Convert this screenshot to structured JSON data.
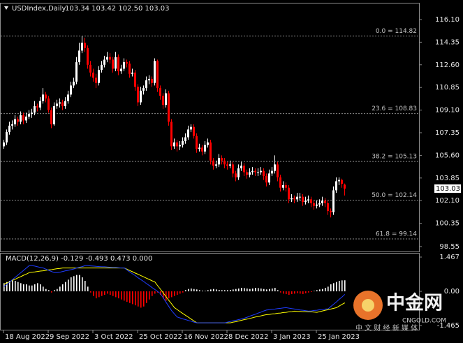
{
  "chart_data": [
    {
      "type": "candlestick",
      "title": "USDIndex,Daily",
      "quote": "103.34 103.42 102.50 103.03",
      "ylim": [
        98.17,
        117.34
      ],
      "yticks": [
        {
          "value": 116.1,
          "label": "116.10"
        },
        {
          "value": 114.35,
          "label": "114.35"
        },
        {
          "value": 112.6,
          "label": "112.60"
        },
        {
          "value": 110.85,
          "label": "110.85"
        },
        {
          "value": 109.1,
          "label": "109.10"
        },
        {
          "value": 107.35,
          "label": "107.35"
        },
        {
          "value": 105.6,
          "label": "105.60"
        },
        {
          "value": 103.85,
          "label": "103.85"
        },
        {
          "value": 102.1,
          "label": "102.10"
        },
        {
          "value": 100.35,
          "label": "100.35"
        },
        {
          "value": 98.55,
          "label": "98.55"
        }
      ],
      "xlim": [
        -1.25,
        148.75
      ],
      "xticks": [
        {
          "value": 0,
          "label": "18 Aug 2022"
        },
        {
          "value": 16,
          "label": "9 Sep 2022"
        },
        {
          "value": 32,
          "label": "3 Oct 2022"
        },
        {
          "value": 48,
          "label": "25 Oct 2022"
        },
        {
          "value": 64,
          "label": "16 Nov 2022"
        },
        {
          "value": 80,
          "label": "8 Dec 2022"
        },
        {
          "value": 96,
          "label": "3 Jan 2023"
        },
        {
          "value": 112,
          "label": "25 Jan 2023"
        }
      ],
      "fib_levels": [
        {
          "value": 114.82,
          "label": "0.0 = 114.82"
        },
        {
          "value": 108.83,
          "label": "23.6 = 108.83"
        },
        {
          "value": 105.13,
          "label": "38.2 = 105.13"
        },
        {
          "value": 102.14,
          "label": "50.0 = 102.14"
        },
        {
          "value": 99.14,
          "label": "61.8 = 99.14"
        }
      ],
      "last_price": {
        "value": 103.03,
        "label": "103.03"
      },
      "up_color": "#ffffff",
      "down_color": "#ff0000",
      "candles": [
        [
          106.3,
          106.8,
          106.1,
          106.6
        ],
        [
          106.6,
          107.6,
          106.4,
          107.4
        ],
        [
          107.4,
          108.2,
          107.2,
          107.9
        ],
        [
          107.9,
          108.3,
          107.6,
          108.0
        ],
        [
          108.0,
          108.7,
          107.8,
          108.4
        ],
        [
          108.4,
          108.6,
          107.9,
          108.2
        ],
        [
          108.2,
          109.0,
          108.0,
          108.7
        ],
        [
          108.7,
          108.9,
          108.0,
          108.3
        ],
        [
          108.3,
          108.9,
          108.1,
          108.6
        ],
        [
          108.6,
          109.1,
          108.4,
          108.8
        ],
        [
          108.8,
          109.2,
          108.5,
          108.9
        ],
        [
          108.9,
          109.8,
          108.7,
          109.4
        ],
        [
          109.4,
          109.6,
          109.0,
          109.3
        ],
        [
          109.3,
          110.1,
          109.1,
          109.8
        ],
        [
          109.8,
          110.8,
          109.6,
          110.3
        ],
        [
          110.3,
          110.5,
          109.7,
          110.0
        ],
        [
          110.0,
          110.2,
          108.9,
          109.1
        ],
        [
          109.1,
          109.3,
          107.7,
          108.0
        ],
        [
          108.0,
          109.7,
          107.9,
          109.4
        ],
        [
          109.4,
          109.9,
          109.2,
          109.6
        ],
        [
          109.6,
          110.0,
          109.3,
          109.7
        ],
        [
          109.7,
          109.9,
          109.1,
          109.4
        ],
        [
          109.4,
          110.1,
          109.2,
          109.8
        ],
        [
          109.8,
          110.6,
          109.6,
          110.3
        ],
        [
          110.3,
          111.3,
          110.1,
          111.0
        ],
        [
          111.0,
          111.6,
          110.8,
          111.3
        ],
        [
          111.3,
          113.2,
          111.1,
          112.8
        ],
        [
          112.8,
          114.3,
          112.6,
          113.7
        ],
        [
          113.7,
          114.8,
          113.5,
          114.3
        ],
        [
          114.3,
          114.7,
          113.6,
          113.9
        ],
        [
          113.9,
          114.1,
          112.3,
          112.6
        ],
        [
          112.6,
          112.9,
          111.7,
          112.0
        ],
        [
          112.0,
          112.3,
          111.3,
          111.6
        ],
        [
          111.6,
          111.9,
          110.8,
          111.2
        ],
        [
          111.2,
          112.5,
          111.0,
          112.2
        ],
        [
          112.2,
          112.9,
          112.0,
          112.6
        ],
        [
          112.6,
          113.3,
          112.4,
          113.0
        ],
        [
          113.0,
          113.6,
          112.8,
          113.2
        ],
        [
          113.2,
          113.5,
          112.7,
          113.0
        ],
        [
          113.0,
          113.2,
          112.0,
          112.3
        ],
        [
          112.3,
          113.6,
          112.1,
          113.2
        ],
        [
          113.2,
          113.4,
          111.8,
          112.1
        ],
        [
          112.1,
          112.6,
          111.9,
          112.3
        ],
        [
          112.3,
          113.1,
          112.1,
          112.8
        ],
        [
          112.8,
          113.0,
          112.4,
          112.7
        ],
        [
          112.7,
          112.9,
          111.6,
          111.9
        ],
        [
          111.9,
          112.3,
          111.7,
          112.0
        ],
        [
          112.0,
          112.2,
          110.6,
          110.9
        ],
        [
          110.9,
          111.1,
          109.4,
          109.7
        ],
        [
          109.7,
          110.9,
          109.5,
          110.6
        ],
        [
          110.6,
          111.0,
          110.3,
          110.8
        ],
        [
          110.8,
          111.7,
          110.6,
          111.4
        ],
        [
          111.4,
          111.8,
          111.1,
          111.5
        ],
        [
          111.5,
          111.7,
          110.9,
          111.2
        ],
        [
          111.2,
          113.1,
          111.0,
          112.9
        ],
        [
          112.9,
          113.0,
          110.5,
          110.8
        ],
        [
          110.8,
          111.0,
          109.9,
          110.2
        ],
        [
          110.2,
          110.4,
          109.2,
          109.5
        ],
        [
          109.5,
          110.7,
          109.3,
          110.4
        ],
        [
          110.4,
          110.6,
          107.9,
          108.2
        ],
        [
          108.2,
          108.4,
          106.0,
          106.3
        ],
        [
          106.3,
          106.9,
          106.1,
          106.6
        ],
        [
          106.6,
          106.8,
          105.9,
          106.3
        ],
        [
          106.3,
          106.7,
          106.0,
          106.4
        ],
        [
          106.4,
          107.0,
          106.2,
          106.7
        ],
        [
          106.7,
          107.3,
          106.5,
          107.0
        ],
        [
          107.0,
          107.9,
          106.8,
          107.6
        ],
        [
          107.6,
          108.0,
          107.4,
          107.8
        ],
        [
          107.8,
          108.0,
          106.9,
          107.1
        ],
        [
          107.1,
          107.3,
          105.8,
          106.1
        ],
        [
          106.1,
          106.5,
          105.9,
          106.2
        ],
        [
          106.2,
          106.4,
          105.6,
          105.9
        ],
        [
          105.9,
          106.7,
          105.7,
          106.4
        ],
        [
          106.4,
          106.9,
          106.2,
          106.6
        ],
        [
          106.6,
          106.8,
          104.9,
          105.2
        ],
        [
          105.2,
          105.4,
          104.5,
          104.8
        ],
        [
          104.8,
          105.2,
          104.6,
          104.9
        ],
        [
          104.9,
          105.7,
          104.7,
          105.4
        ],
        [
          105.4,
          105.6,
          104.9,
          105.2
        ],
        [
          105.2,
          105.4,
          104.6,
          104.9
        ],
        [
          104.9,
          105.1,
          104.5,
          104.8
        ],
        [
          104.8,
          105.2,
          104.6,
          104.9
        ],
        [
          104.9,
          105.1,
          103.9,
          104.2
        ],
        [
          104.2,
          104.4,
          103.6,
          103.9
        ],
        [
          103.9,
          104.9,
          103.7,
          104.6
        ],
        [
          104.6,
          105.1,
          104.4,
          104.8
        ],
        [
          104.8,
          105.0,
          104.0,
          104.3
        ],
        [
          104.3,
          104.5,
          103.8,
          104.1
        ],
        [
          104.1,
          104.6,
          103.9,
          104.3
        ],
        [
          104.3,
          104.7,
          104.1,
          104.4
        ],
        [
          104.4,
          104.6,
          104.0,
          104.3
        ],
        [
          104.3,
          104.6,
          104.0,
          104.3
        ],
        [
          104.3,
          104.7,
          104.1,
          104.4
        ],
        [
          104.4,
          104.6,
          103.7,
          104.0
        ],
        [
          104.0,
          104.2,
          103.2,
          103.5
        ],
        [
          103.5,
          104.5,
          103.3,
          104.2
        ],
        [
          104.2,
          104.7,
          104.0,
          104.4
        ],
        [
          104.4,
          105.6,
          104.2,
          104.9
        ],
        [
          104.9,
          105.1,
          103.6,
          103.9
        ],
        [
          103.9,
          104.1,
          102.8,
          103.1
        ],
        [
          103.1,
          103.6,
          102.9,
          103.3
        ],
        [
          103.3,
          103.5,
          102.8,
          103.1
        ],
        [
          103.1,
          103.3,
          101.9,
          102.2
        ],
        [
          102.2,
          102.6,
          102.0,
          102.3
        ],
        [
          102.3,
          102.5,
          101.9,
          102.2
        ],
        [
          102.2,
          102.7,
          102.0,
          102.4
        ],
        [
          102.4,
          102.7,
          102.1,
          102.4
        ],
        [
          102.4,
          102.6,
          101.7,
          102.0
        ],
        [
          102.0,
          102.4,
          101.8,
          102.1
        ],
        [
          102.1,
          102.5,
          101.9,
          102.2
        ],
        [
          102.2,
          102.4,
          101.6,
          101.9
        ],
        [
          101.9,
          102.1,
          101.4,
          101.7
        ],
        [
          101.7,
          102.1,
          101.5,
          101.8
        ],
        [
          101.8,
          102.2,
          101.6,
          101.9
        ],
        [
          101.9,
          102.4,
          101.7,
          102.1
        ],
        [
          102.1,
          102.3,
          101.6,
          101.9
        ],
        [
          101.9,
          102.1,
          101.0,
          101.3
        ],
        [
          101.3,
          101.5,
          100.8,
          101.2
        ],
        [
          101.2,
          103.2,
          101.0,
          102.9
        ],
        [
          102.9,
          103.9,
          102.7,
          103.6
        ],
        [
          103.6,
          103.9,
          103.3,
          103.7
        ],
        [
          103.7,
          103.8,
          103.1,
          103.4
        ],
        [
          103.34,
          103.42,
          102.5,
          103.03
        ]
      ]
    },
    {
      "type": "macd",
      "title": "MACD(12,26,9) -0.129 -0.493 0.473 0.000",
      "ylim": [
        -1.645,
        1.617
      ],
      "yticks": [
        1.467,
        {
          "value": 0,
          "label": "0.00"
        },
        -1.465
      ],
      "histogram": {
        "up_color": "#ffffff",
        "down_color": "#ff0000",
        "values": [
          0.35,
          0.4,
          0.45,
          0.5,
          0.45,
          0.4,
          0.35,
          0.3,
          0.3,
          0.25,
          0.25,
          0.3,
          0.35,
          0.3,
          0.2,
          0.1,
          0.05,
          -0.05,
          0.05,
          0.1,
          0.2,
          0.3,
          0.4,
          0.5,
          0.6,
          0.65,
          0.7,
          0.7,
          0.6,
          0.45,
          0.2,
          -0.05,
          -0.2,
          -0.3,
          -0.25,
          -0.2,
          -0.15,
          -0.1,
          -0.15,
          -0.2,
          -0.25,
          -0.3,
          -0.35,
          -0.4,
          -0.45,
          -0.5,
          -0.55,
          -0.6,
          -0.65,
          -0.7,
          -0.65,
          -0.5,
          -0.35,
          -0.2,
          -0.1,
          -0.05,
          -0.15,
          -0.3,
          -0.4,
          -0.3,
          -0.25,
          -0.2,
          -0.15,
          -0.1,
          -0.05,
          0.05,
          0.1,
          0.12,
          0.1,
          0.08,
          0.05,
          0.03,
          0.02,
          0.05,
          0.08,
          0.1,
          0.08,
          0.06,
          0.05,
          0.05,
          0.05,
          0.06,
          0.08,
          0.1,
          0.12,
          0.15,
          0.14,
          0.12,
          0.1,
          0.12,
          0.15,
          0.14,
          0.12,
          0.1,
          0.08,
          0.1,
          0.12,
          0.15,
          0.05,
          -0.05,
          -0.1,
          -0.12,
          -0.15,
          -0.12,
          -0.1,
          -0.08,
          -0.1,
          -0.12,
          -0.08,
          -0.05,
          -0.03,
          0.02,
          0.05,
          0.08,
          0.1,
          0.15,
          0.2,
          0.3,
          0.35,
          0.4,
          0.45,
          0.47,
          0.473
        ]
      },
      "macd_line": {
        "color": "#1e3cff",
        "values": [
          0.2,
          0.3,
          0.4,
          0.5,
          0.6,
          0.7,
          0.8,
          0.9,
          1.0,
          1.1,
          1.1,
          1.08,
          1.05,
          1.02,
          1.0,
          0.95,
          0.9,
          0.85,
          0.8,
          0.8,
          0.82,
          0.85,
          0.88,
          0.9,
          0.93,
          0.96,
          1.0,
          1.03,
          1.06,
          1.1,
          1.1,
          1.09,
          1.08,
          1.07,
          1.06,
          1.05,
          1.05,
          1.04,
          1.03,
          1.02,
          1.02,
          1.01,
          1.0,
          1.0,
          0.92,
          0.83,
          0.75,
          0.67,
          0.58,
          0.5,
          0.42,
          0.33,
          0.25,
          0.16,
          0.08,
          -0.01,
          -0.1,
          -0.28,
          -0.47,
          -0.65,
          -0.83,
          -0.97,
          -1.1,
          -1.14,
          -1.18,
          -1.21,
          -1.25,
          -1.28,
          -1.32,
          -1.35,
          -1.35,
          -1.35,
          -1.35,
          -1.35,
          -1.35,
          -1.35,
          -1.35,
          -1.35,
          -1.35,
          -1.35,
          -1.32,
          -1.29,
          -1.26,
          -1.24,
          -1.21,
          -1.18,
          -1.15,
          -1.11,
          -1.06,
          -1.02,
          -0.98,
          -0.93,
          -0.89,
          -0.84,
          -0.8,
          -0.79,
          -0.77,
          -0.76,
          -0.74,
          -0.73,
          -0.71,
          -0.7,
          -0.72,
          -0.74,
          -0.76,
          -0.78,
          -0.8,
          -0.81,
          -0.83,
          -0.85,
          -0.84,
          -0.82,
          -0.81,
          -0.79,
          -0.78,
          -0.76,
          -0.75,
          -0.65,
          -0.55,
          -0.45,
          -0.34,
          -0.24,
          -0.129
        ]
      },
      "signal_line": {
        "color": "#ffff00",
        "values": [
          0.3,
          0.36,
          0.41,
          0.47,
          0.52,
          0.58,
          0.63,
          0.69,
          0.74,
          0.8,
          0.82,
          0.83,
          0.85,
          0.87,
          0.88,
          0.9,
          0.92,
          0.93,
          0.95,
          0.97,
          0.98,
          1.0,
          1.0,
          1.0,
          1.0,
          1.0,
          1.0,
          1.0,
          1.0,
          1.0,
          1.0,
          1.0,
          1.0,
          1.0,
          1.0,
          1.0,
          1.0,
          1.0,
          1.0,
          1.0,
          1.0,
          1.0,
          1.0,
          1.0,
          0.95,
          0.89,
          0.84,
          0.78,
          0.73,
          0.67,
          0.62,
          0.56,
          0.51,
          0.45,
          0.4,
          0.24,
          0.09,
          -0.07,
          -0.23,
          -0.39,
          -0.54,
          -0.7,
          -0.78,
          -0.87,
          -0.95,
          -1.03,
          -1.11,
          -1.19,
          -1.27,
          -1.35,
          -1.35,
          -1.35,
          -1.35,
          -1.35,
          -1.35,
          -1.35,
          -1.35,
          -1.35,
          -1.35,
          -1.35,
          -1.35,
          -1.35,
          -1.32,
          -1.3,
          -1.27,
          -1.24,
          -1.21,
          -1.19,
          -1.16,
          -1.13,
          -1.1,
          -1.08,
          -1.05,
          -1.02,
          -1.0,
          -0.99,
          -0.97,
          -0.96,
          -0.94,
          -0.93,
          -0.91,
          -0.9,
          -0.88,
          -0.87,
          -0.85,
          -0.86,
          -0.86,
          -0.87,
          -0.87,
          -0.88,
          -0.88,
          -0.89,
          -0.9,
          -0.87,
          -0.84,
          -0.81,
          -0.79,
          -0.76,
          -0.73,
          -0.7,
          -0.63,
          -0.56,
          -0.493
        ]
      }
    }
  ],
  "watermark": {
    "brand": "中金网",
    "domain": "CNGOLD.COM",
    "slogan": "中 文 财 经 新 媒 体"
  }
}
